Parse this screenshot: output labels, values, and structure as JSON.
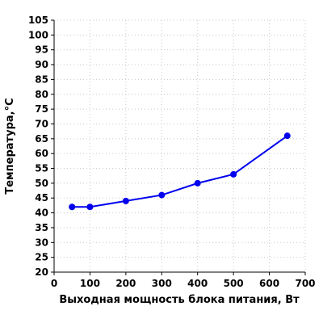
{
  "chart_data": {
    "type": "line",
    "xlabel": "Выходная мощность блока питания, Вт",
    "ylabel": "Температура,°C",
    "xlim": [
      0,
      700
    ],
    "ylim": [
      20,
      105
    ],
    "xticks": [
      0,
      100,
      200,
      300,
      400,
      500,
      600,
      700
    ],
    "yticks": [
      20,
      25,
      30,
      35,
      40,
      45,
      50,
      55,
      60,
      65,
      70,
      75,
      80,
      85,
      90,
      95,
      100,
      105
    ],
    "grid": true,
    "series": [
      {
        "color": "#0000ee",
        "x": [
          50,
          100,
          200,
          300,
          400,
          500,
          650
        ],
        "y": [
          42,
          42,
          44,
          46,
          50,
          53,
          66
        ]
      }
    ]
  }
}
